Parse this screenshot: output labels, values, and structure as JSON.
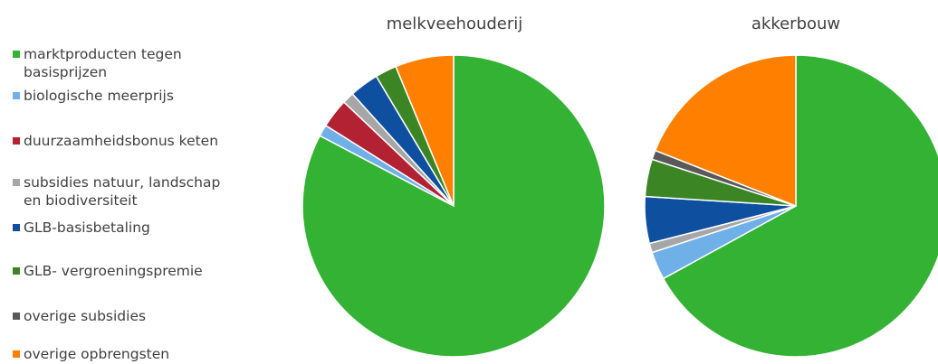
{
  "legend": {
    "items": [
      {
        "label": "marktproducten tegen\nbasisprijzen",
        "color": "#33b233"
      },
      {
        "label": "biologische meerprijs",
        "color": "#6fb0e8"
      },
      {
        "label": "duurzaamheidsbonus keten",
        "color": "#b22233"
      },
      {
        "label": "subsidies natuur, landschap\nen biodiversiteit",
        "color": "#a6a6a6"
      },
      {
        "label": "GLB-basisbetaling",
        "color": "#0f4fa0"
      },
      {
        "label": "GLB- vergroeningspremie",
        "color": "#3c8525"
      },
      {
        "label": "overige subsidies",
        "color": "#595959"
      },
      {
        "label": "overige opbrengsten",
        "color": "#ff7f00"
      }
    ]
  },
  "chart_data": [
    {
      "type": "pie",
      "title": "melkveehouderij",
      "categories": [
        "marktproducten tegen basisprijzen",
        "biologische meerprijs",
        "duurzaamheidsbonus keten",
        "subsidies natuur, landschap en biodiversiteit",
        "GLB-basisbetaling",
        "GLB- vergroeningspremie",
        "overige subsidies",
        "overige opbrengsten"
      ],
      "values": [
        79.4,
        1.2,
        3.0,
        1.2,
        3.0,
        2.2,
        0,
        6.0
      ],
      "legend": "left"
    },
    {
      "type": "pie",
      "title": "akkerbouw",
      "categories": [
        "marktproducten tegen basisprijzen",
        "biologische meerprijs",
        "duurzaamheidsbonus keten",
        "subsidies natuur, landschap en biodiversiteit",
        "GLB-basisbetaling",
        "GLB- vergroeningspremie",
        "overige subsidies",
        "overige opbrengsten"
      ],
      "values": [
        67.0,
        3.0,
        0,
        1.0,
        5.0,
        4.0,
        1.0,
        19.0
      ],
      "legend": "left"
    }
  ]
}
